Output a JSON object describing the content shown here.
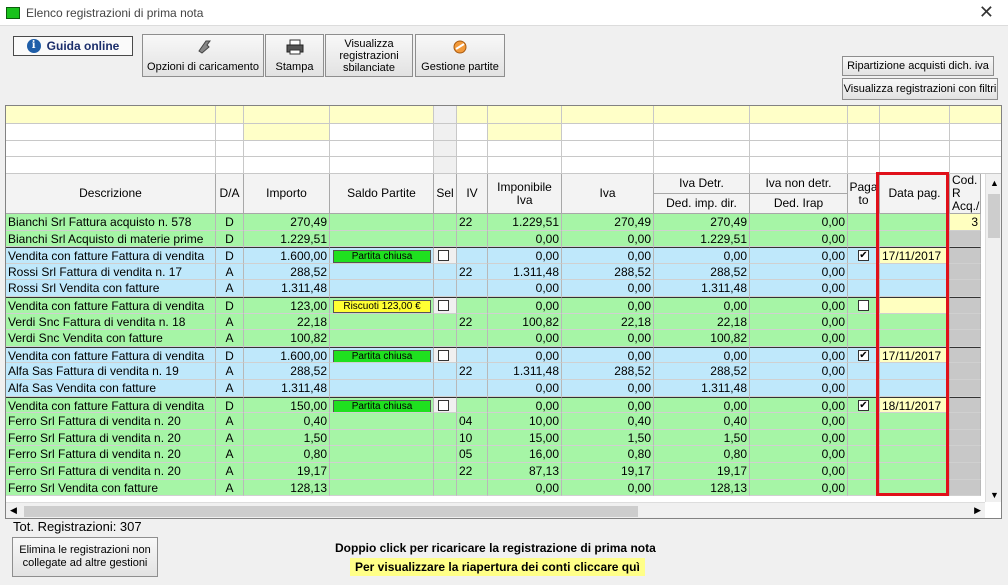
{
  "window": {
    "title": "Elenco registrazioni di prima nota",
    "close_glyph": "✕"
  },
  "toolbar": {
    "guida": "Guida online",
    "opzioni": "Opzioni di caricamento",
    "stampa": "Stampa",
    "visualizza_sbil": "Visualizza registrazioni sbilanciate",
    "gestione_partite": "Gestione partite",
    "ripartizione": "Ripartizione acquisti dich. iva",
    "visualizza_filtri": "Visualizza registrazioni con filtri"
  },
  "headers": {
    "descrizione": "Descrizione",
    "da": "D/A",
    "importo": "Importo",
    "saldo": "Saldo Partite",
    "sel": "Sel",
    "iv": "IV",
    "imponibile": "Imponibile Iva",
    "iva": "Iva",
    "iva_detr": "Iva Detr.",
    "ded_imp_dir": "Ded. imp. dir.",
    "iva_non_detr": "Iva non detr.",
    "ded_irap": "Ded. Irap",
    "pagato": "Paga to",
    "data_pag": "Data pag.",
    "cod": "Cod. R Acq./"
  },
  "rows": [
    {
      "desc": "Bianchi Srl Fattura acquisto n. 578",
      "da": "D",
      "importo": "270,49",
      "saldo": "",
      "saldo_type": "",
      "sel": "",
      "iv": "22",
      "imponibile": "1.229,51",
      "iva": "270,49",
      "detr": "270,49",
      "nondetr": "0,00",
      "pag": "",
      "data": "",
      "color": "green",
      "first": false
    },
    {
      "desc": "Bianchi Srl Acquisto di materie prime",
      "da": "D",
      "importo": "1.229,51",
      "saldo": "",
      "saldo_type": "",
      "sel": "",
      "iv": "",
      "imponibile": "0,00",
      "iva": "0,00",
      "detr": "1.229,51",
      "nondetr": "0,00",
      "pag": "",
      "data": "",
      "color": "green",
      "first": false
    },
    {
      "desc": "Vendita con fatture Fattura di vendita",
      "da": "D",
      "importo": "1.600,00",
      "saldo": "Partita chiusa",
      "saldo_type": "chiusa",
      "sel": "box",
      "iv": "",
      "imponibile": "0,00",
      "iva": "0,00",
      "detr": "0,00",
      "nondetr": "0,00",
      "pag": "checked",
      "data": "17/11/2017",
      "color": "blue",
      "first": true
    },
    {
      "desc": "Rossi Srl Fattura di vendita n. 17",
      "da": "A",
      "importo": "288,52",
      "saldo": "",
      "saldo_type": "",
      "sel": "",
      "iv": "22",
      "imponibile": "1.311,48",
      "iva": "288,52",
      "detr": "288,52",
      "nondetr": "0,00",
      "pag": "",
      "data": "",
      "color": "blue",
      "first": false
    },
    {
      "desc": "Rossi Srl Vendita con fatture",
      "da": "A",
      "importo": "1.311,48",
      "saldo": "",
      "saldo_type": "",
      "sel": "",
      "iv": "",
      "imponibile": "0,00",
      "iva": "0,00",
      "detr": "1.311,48",
      "nondetr": "0,00",
      "pag": "",
      "data": "",
      "color": "blue",
      "first": false
    },
    {
      "desc": "Vendita con fatture Fattura di vendita",
      "da": "D",
      "importo": "123,00",
      "saldo": "Riscuoti 123,00 €",
      "saldo_type": "riscuoti",
      "sel": "box",
      "iv": "",
      "imponibile": "0,00",
      "iva": "0,00",
      "detr": "0,00",
      "nondetr": "0,00",
      "pag": "box",
      "data": "",
      "color": "green",
      "first": true
    },
    {
      "desc": "Verdi Snc Fattura di vendita n. 18",
      "da": "A",
      "importo": "22,18",
      "saldo": "",
      "saldo_type": "",
      "sel": "",
      "iv": "22",
      "imponibile": "100,82",
      "iva": "22,18",
      "detr": "22,18",
      "nondetr": "0,00",
      "pag": "",
      "data": "",
      "color": "green",
      "first": false
    },
    {
      "desc": "Verdi Snc Vendita con fatture",
      "da": "A",
      "importo": "100,82",
      "saldo": "",
      "saldo_type": "",
      "sel": "",
      "iv": "",
      "imponibile": "0,00",
      "iva": "0,00",
      "detr": "100,82",
      "nondetr": "0,00",
      "pag": "",
      "data": "",
      "color": "green",
      "first": false
    },
    {
      "desc": "Vendita con fatture Fattura di vendita",
      "da": "D",
      "importo": "1.600,00",
      "saldo": "Partita chiusa",
      "saldo_type": "chiusa",
      "sel": "box",
      "iv": "",
      "imponibile": "0,00",
      "iva": "0,00",
      "detr": "0,00",
      "nondetr": "0,00",
      "pag": "checked",
      "data": "17/11/2017",
      "color": "blue",
      "first": true
    },
    {
      "desc": "Alfa Sas Fattura di vendita n. 19",
      "da": "A",
      "importo": "288,52",
      "saldo": "",
      "saldo_type": "",
      "sel": "",
      "iv": "22",
      "imponibile": "1.311,48",
      "iva": "288,52",
      "detr": "288,52",
      "nondetr": "0,00",
      "pag": "",
      "data": "",
      "color": "blue",
      "first": false
    },
    {
      "desc": "Alfa Sas Vendita con fatture",
      "da": "A",
      "importo": "1.311,48",
      "saldo": "",
      "saldo_type": "",
      "sel": "",
      "iv": "",
      "imponibile": "0,00",
      "iva": "0,00",
      "detr": "1.311,48",
      "nondetr": "0,00",
      "pag": "",
      "data": "",
      "color": "blue",
      "first": false
    },
    {
      "desc": "Vendita con fatture Fattura di vendita",
      "da": "D",
      "importo": "150,00",
      "saldo": "Partita chiusa",
      "saldo_type": "chiusa",
      "sel": "box",
      "iv": "",
      "imponibile": "0,00",
      "iva": "0,00",
      "detr": "0,00",
      "nondetr": "0,00",
      "pag": "checked",
      "data": "18/11/2017",
      "color": "green",
      "first": true
    },
    {
      "desc": "Ferro Srl Fattura di vendita n. 20",
      "da": "A",
      "importo": "0,40",
      "saldo": "",
      "saldo_type": "",
      "sel": "",
      "iv": "04",
      "imponibile": "10,00",
      "iva": "0,40",
      "detr": "0,40",
      "nondetr": "0,00",
      "pag": "",
      "data": "",
      "color": "green",
      "first": false
    },
    {
      "desc": "Ferro Srl Fattura di vendita n. 20",
      "da": "A",
      "importo": "1,50",
      "saldo": "",
      "saldo_type": "",
      "sel": "",
      "iv": "10",
      "imponibile": "15,00",
      "iva": "1,50",
      "detr": "1,50",
      "nondetr": "0,00",
      "pag": "",
      "data": "",
      "color": "green",
      "first": false
    },
    {
      "desc": "Ferro Srl Fattura di vendita n. 20",
      "da": "A",
      "importo": "0,80",
      "saldo": "",
      "saldo_type": "",
      "sel": "",
      "iv": "05",
      "imponibile": "16,00",
      "iva": "0,80",
      "detr": "0,80",
      "nondetr": "0,00",
      "pag": "",
      "data": "",
      "color": "green",
      "first": false
    },
    {
      "desc": "Ferro Srl Fattura di vendita n. 20",
      "da": "A",
      "importo": "19,17",
      "saldo": "",
      "saldo_type": "",
      "sel": "",
      "iv": "22",
      "imponibile": "87,13",
      "iva": "19,17",
      "detr": "19,17",
      "nondetr": "0,00",
      "pag": "",
      "data": "",
      "color": "green",
      "first": false
    },
    {
      "desc": "Ferro Srl Vendita con fatture",
      "da": "A",
      "importo": "128,13",
      "saldo": "",
      "saldo_type": "",
      "sel": "",
      "iv": "",
      "imponibile": "0,00",
      "iva": "0,00",
      "detr": "128,13",
      "nondetr": "0,00",
      "pag": "",
      "data": "",
      "color": "green",
      "first": false
    }
  ],
  "cod_first_row": "3",
  "footer": {
    "tot": "Tot. Registrazioni: 307",
    "elimina": "Elimina le registrazioni non collegate ad altre gestioni",
    "msg1": "Doppio click per ricaricare la registrazione di prima nota",
    "msg2": "Per visualizzare la riapertura dei conti cliccare quì"
  },
  "colors": {
    "green": "#a6f5a6",
    "blue": "#bfe8fb",
    "chiusa": "#1fe01f",
    "riscuoti": "#ffff33",
    "filter_yellow": "#ffffc8",
    "date_yellow": "#ffffc0",
    "gray": "#c8c8c8"
  }
}
